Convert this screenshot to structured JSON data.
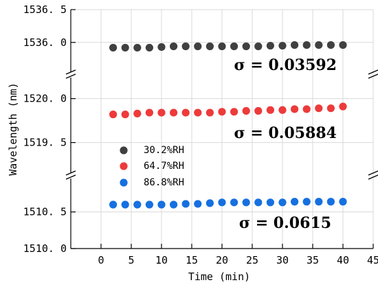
{
  "chart_data": {
    "type": "scatter",
    "xlabel": "Time (min)",
    "ylabel": "Wavelength (nm)",
    "xlim": [
      -5,
      45
    ],
    "x_ticks": [
      0,
      5,
      10,
      15,
      20,
      25,
      30,
      35,
      40,
      45
    ],
    "axis_break": true,
    "grid": true,
    "legend_position": "middle-left",
    "panels": [
      {
        "ylim": [
          1535.6,
          1536.5
        ],
        "y_ticks": [
          "1536. 0",
          "1536. 5"
        ],
        "sigma_text": "σ = 0.03592"
      },
      {
        "ylim": [
          1519.2,
          1520.2
        ],
        "y_ticks": [
          "1519. 5",
          "1520. 0"
        ],
        "sigma_text": "σ = 0.05884"
      },
      {
        "ylim": [
          1510.0,
          1510.9
        ],
        "y_ticks": [
          "1510. 0",
          "1510. 5"
        ],
        "sigma_text": "σ = 0.0615"
      }
    ],
    "x": [
      2,
      4,
      6,
      8,
      10,
      12,
      14,
      16,
      18,
      20,
      22,
      24,
      26,
      28,
      30,
      32,
      34,
      36,
      38,
      40
    ],
    "series": [
      {
        "name": "30.2%RH",
        "color": "#404040",
        "panel": 0,
        "values": [
          1535.92,
          1535.92,
          1535.92,
          1535.92,
          1535.93,
          1535.94,
          1535.94,
          1535.94,
          1535.94,
          1535.94,
          1535.94,
          1535.94,
          1535.94,
          1535.95,
          1535.95,
          1535.96,
          1535.96,
          1535.96,
          1535.96,
          1535.96
        ]
      },
      {
        "name": "64.7%RH",
        "color": "#ee3a3a",
        "panel": 1,
        "values": [
          1519.82,
          1519.82,
          1519.83,
          1519.84,
          1519.84,
          1519.84,
          1519.84,
          1519.84,
          1519.84,
          1519.85,
          1519.85,
          1519.86,
          1519.86,
          1519.87,
          1519.87,
          1519.88,
          1519.88,
          1519.89,
          1519.89,
          1519.91
        ]
      },
      {
        "name": "86.8%RH",
        "color": "#1670e0",
        "panel": 2,
        "values": [
          1510.6,
          1510.6,
          1510.6,
          1510.6,
          1510.6,
          1510.6,
          1510.61,
          1510.61,
          1510.62,
          1510.63,
          1510.63,
          1510.63,
          1510.63,
          1510.63,
          1510.63,
          1510.64,
          1510.64,
          1510.64,
          1510.64,
          1510.64
        ]
      }
    ]
  }
}
